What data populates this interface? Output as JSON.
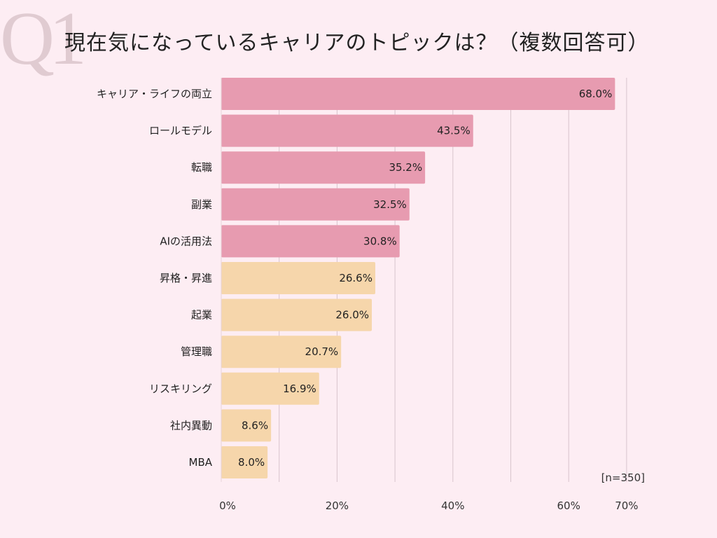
{
  "chart_data": {
    "type": "bar",
    "orientation": "horizontal",
    "watermark": "Q1",
    "title": "現在気になっているキャリアのトピックは？（複数回答可）",
    "categories": [
      "キャリア・ライフの両立",
      "ロールモデル",
      "転職",
      "副業",
      "AIの活用法",
      "昇格・昇進",
      "起業",
      "管理職",
      "リスキリング",
      "社内異動",
      "MBA"
    ],
    "values": [
      68.0,
      43.5,
      35.2,
      32.5,
      30.8,
      26.6,
      26.0,
      20.7,
      16.9,
      8.6,
      8.0
    ],
    "value_labels": [
      "68.0%",
      "43.5%",
      "35.2%",
      "32.5%",
      "30.8%",
      "26.6%",
      "26.0%",
      "20.7%",
      "16.9%",
      "8.6%",
      "8.0%"
    ],
    "bar_colors": [
      "#e79bb0",
      "#e79bb0",
      "#e79bb0",
      "#e79bb0",
      "#e79bb0",
      "#f6d6ab",
      "#f6d6ab",
      "#f6d6ab",
      "#f6d6ab",
      "#f6d6ab",
      "#f6d6ab"
    ],
    "xlim": [
      0,
      70
    ],
    "gridlines": [
      10,
      20,
      30,
      40,
      50,
      60,
      70
    ],
    "x_ticks": [
      0,
      20,
      40,
      60,
      70
    ],
    "x_tick_labels": [
      "0%",
      "20%",
      "40%",
      "60%",
      "70%"
    ],
    "grid": true,
    "note": "[n=350]"
  }
}
